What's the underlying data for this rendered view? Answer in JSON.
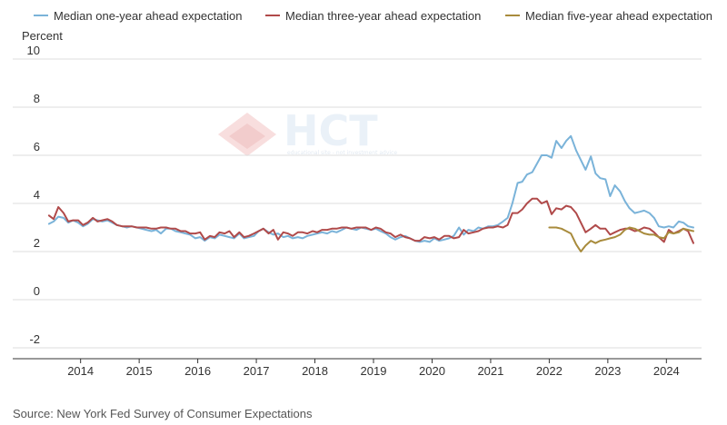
{
  "chart_data": {
    "type": "line",
    "ylabel": "Percent",
    "ylim": [
      -2,
      10
    ],
    "yticks": [
      -2,
      0,
      2,
      4,
      6,
      8,
      10
    ],
    "xlim": [
      2013.4,
      2024.6
    ],
    "xticks": [
      2014,
      2015,
      2016,
      2017,
      2018,
      2019,
      2020,
      2021,
      2022,
      2023,
      2024
    ],
    "grid": "horizontal",
    "legend_position": "top",
    "source": "Source: New York Fed Survey of Consumer Expectations",
    "watermark": {
      "brand": "HCT",
      "tagline": "educational site - not investment advice"
    },
    "series": [
      {
        "name": "Median one-year ahead expectation",
        "color": "#7ab3d9",
        "points": [
          [
            2013.46,
            3.15
          ],
          [
            2013.54,
            3.25
          ],
          [
            2013.62,
            3.45
          ],
          [
            2013.71,
            3.4
          ],
          [
            2013.79,
            3.2
          ],
          [
            2013.87,
            3.3
          ],
          [
            2013.96,
            3.2
          ],
          [
            2014.04,
            3.05
          ],
          [
            2014.12,
            3.15
          ],
          [
            2014.21,
            3.35
          ],
          [
            2014.29,
            3.3
          ],
          [
            2014.37,
            3.25
          ],
          [
            2014.46,
            3.3
          ],
          [
            2014.54,
            3.2
          ],
          [
            2014.62,
            3.1
          ],
          [
            2014.71,
            3.05
          ],
          [
            2014.79,
            3.0
          ],
          [
            2014.87,
            3.05
          ],
          [
            2014.96,
            3.0
          ],
          [
            2015.04,
            2.95
          ],
          [
            2015.12,
            2.9
          ],
          [
            2015.21,
            2.85
          ],
          [
            2015.29,
            2.9
          ],
          [
            2015.37,
            2.75
          ],
          [
            2015.46,
            2.95
          ],
          [
            2015.54,
            2.95
          ],
          [
            2015.62,
            2.85
          ],
          [
            2015.71,
            2.8
          ],
          [
            2015.79,
            2.75
          ],
          [
            2015.87,
            2.7
          ],
          [
            2015.96,
            2.55
          ],
          [
            2016.04,
            2.6
          ],
          [
            2016.12,
            2.45
          ],
          [
            2016.21,
            2.6
          ],
          [
            2016.29,
            2.55
          ],
          [
            2016.37,
            2.7
          ],
          [
            2016.46,
            2.65
          ],
          [
            2016.54,
            2.6
          ],
          [
            2016.62,
            2.55
          ],
          [
            2016.71,
            2.75
          ],
          [
            2016.79,
            2.55
          ],
          [
            2016.87,
            2.6
          ],
          [
            2016.96,
            2.65
          ],
          [
            2017.04,
            2.85
          ],
          [
            2017.12,
            2.95
          ],
          [
            2017.21,
            2.8
          ],
          [
            2017.29,
            2.7
          ],
          [
            2017.37,
            2.75
          ],
          [
            2017.46,
            2.6
          ],
          [
            2017.54,
            2.65
          ],
          [
            2017.62,
            2.55
          ],
          [
            2017.71,
            2.6
          ],
          [
            2017.79,
            2.55
          ],
          [
            2017.87,
            2.65
          ],
          [
            2017.96,
            2.7
          ],
          [
            2018.04,
            2.75
          ],
          [
            2018.12,
            2.8
          ],
          [
            2018.21,
            2.75
          ],
          [
            2018.29,
            2.85
          ],
          [
            2018.37,
            2.8
          ],
          [
            2018.46,
            2.9
          ],
          [
            2018.54,
            3.0
          ],
          [
            2018.62,
            2.95
          ],
          [
            2018.71,
            2.9
          ],
          [
            2018.79,
            3.0
          ],
          [
            2018.87,
            2.95
          ],
          [
            2018.96,
            2.9
          ],
          [
            2019.04,
            2.95
          ],
          [
            2019.12,
            2.85
          ],
          [
            2019.21,
            2.75
          ],
          [
            2019.29,
            2.6
          ],
          [
            2019.37,
            2.5
          ],
          [
            2019.46,
            2.6
          ],
          [
            2019.54,
            2.65
          ],
          [
            2019.62,
            2.55
          ],
          [
            2019.71,
            2.45
          ],
          [
            2019.79,
            2.4
          ],
          [
            2019.87,
            2.45
          ],
          [
            2019.96,
            2.4
          ],
          [
            2020.04,
            2.55
          ],
          [
            2020.12,
            2.45
          ],
          [
            2020.21,
            2.5
          ],
          [
            2020.29,
            2.55
          ],
          [
            2020.37,
            2.65
          ],
          [
            2020.46,
            3.0
          ],
          [
            2020.54,
            2.7
          ],
          [
            2020.62,
            2.9
          ],
          [
            2020.71,
            2.85
          ],
          [
            2020.79,
            3.0
          ],
          [
            2020.87,
            2.95
          ],
          [
            2020.96,
            3.05
          ],
          [
            2021.04,
            3.05
          ],
          [
            2021.12,
            3.1
          ],
          [
            2021.21,
            3.25
          ],
          [
            2021.29,
            3.4
          ],
          [
            2021.37,
            4.0
          ],
          [
            2021.46,
            4.85
          ],
          [
            2021.54,
            4.9
          ],
          [
            2021.62,
            5.2
          ],
          [
            2021.71,
            5.3
          ],
          [
            2021.79,
            5.65
          ],
          [
            2021.87,
            6.0
          ],
          [
            2021.96,
            6.0
          ],
          [
            2022.04,
            5.9
          ],
          [
            2022.12,
            6.6
          ],
          [
            2022.21,
            6.3
          ],
          [
            2022.29,
            6.6
          ],
          [
            2022.37,
            6.8
          ],
          [
            2022.46,
            6.2
          ],
          [
            2022.54,
            5.8
          ],
          [
            2022.62,
            5.4
          ],
          [
            2022.71,
            5.95
          ],
          [
            2022.79,
            5.25
          ],
          [
            2022.87,
            5.05
          ],
          [
            2022.96,
            5.0
          ],
          [
            2023.04,
            4.3
          ],
          [
            2023.12,
            4.75
          ],
          [
            2023.21,
            4.5
          ],
          [
            2023.29,
            4.1
          ],
          [
            2023.37,
            3.8
          ],
          [
            2023.46,
            3.6
          ],
          [
            2023.54,
            3.65
          ],
          [
            2023.62,
            3.7
          ],
          [
            2023.71,
            3.6
          ],
          [
            2023.79,
            3.4
          ],
          [
            2023.87,
            3.05
          ],
          [
            2023.96,
            3.0
          ],
          [
            2024.04,
            3.05
          ],
          [
            2024.12,
            3.0
          ],
          [
            2024.21,
            3.25
          ],
          [
            2024.29,
            3.2
          ],
          [
            2024.37,
            3.05
          ],
          [
            2024.46,
            3.0
          ]
        ]
      },
      {
        "name": "Median three-year ahead expectation",
        "color": "#b04a4a",
        "points": [
          [
            2013.46,
            3.5
          ],
          [
            2013.54,
            3.35
          ],
          [
            2013.62,
            3.85
          ],
          [
            2013.71,
            3.6
          ],
          [
            2013.79,
            3.25
          ],
          [
            2013.87,
            3.3
          ],
          [
            2013.96,
            3.3
          ],
          [
            2014.04,
            3.1
          ],
          [
            2014.12,
            3.2
          ],
          [
            2014.21,
            3.4
          ],
          [
            2014.29,
            3.25
          ],
          [
            2014.37,
            3.3
          ],
          [
            2014.46,
            3.35
          ],
          [
            2014.54,
            3.25
          ],
          [
            2014.62,
            3.1
          ],
          [
            2014.71,
            3.05
          ],
          [
            2014.79,
            3.05
          ],
          [
            2014.87,
            3.05
          ],
          [
            2014.96,
            3.0
          ],
          [
            2015.04,
            3.0
          ],
          [
            2015.12,
            3.0
          ],
          [
            2015.21,
            2.95
          ],
          [
            2015.29,
            2.95
          ],
          [
            2015.37,
            3.0
          ],
          [
            2015.46,
            3.0
          ],
          [
            2015.54,
            2.95
          ],
          [
            2015.62,
            2.95
          ],
          [
            2015.71,
            2.85
          ],
          [
            2015.79,
            2.85
          ],
          [
            2015.87,
            2.75
          ],
          [
            2015.96,
            2.75
          ],
          [
            2016.04,
            2.8
          ],
          [
            2016.12,
            2.5
          ],
          [
            2016.21,
            2.65
          ],
          [
            2016.29,
            2.6
          ],
          [
            2016.37,
            2.8
          ],
          [
            2016.46,
            2.75
          ],
          [
            2016.54,
            2.85
          ],
          [
            2016.62,
            2.6
          ],
          [
            2016.71,
            2.8
          ],
          [
            2016.79,
            2.6
          ],
          [
            2016.87,
            2.65
          ],
          [
            2016.96,
            2.75
          ],
          [
            2017.04,
            2.85
          ],
          [
            2017.12,
            2.95
          ],
          [
            2017.21,
            2.75
          ],
          [
            2017.29,
            2.9
          ],
          [
            2017.37,
            2.5
          ],
          [
            2017.46,
            2.8
          ],
          [
            2017.54,
            2.75
          ],
          [
            2017.62,
            2.65
          ],
          [
            2017.71,
            2.8
          ],
          [
            2017.79,
            2.8
          ],
          [
            2017.87,
            2.75
          ],
          [
            2017.96,
            2.85
          ],
          [
            2018.04,
            2.8
          ],
          [
            2018.12,
            2.9
          ],
          [
            2018.21,
            2.9
          ],
          [
            2018.29,
            2.95
          ],
          [
            2018.37,
            2.95
          ],
          [
            2018.46,
            3.0
          ],
          [
            2018.54,
            3.0
          ],
          [
            2018.62,
            2.95
          ],
          [
            2018.71,
            3.0
          ],
          [
            2018.79,
            3.0
          ],
          [
            2018.87,
            3.0
          ],
          [
            2018.96,
            2.9
          ],
          [
            2019.04,
            3.0
          ],
          [
            2019.12,
            2.95
          ],
          [
            2019.21,
            2.8
          ],
          [
            2019.29,
            2.75
          ],
          [
            2019.37,
            2.6
          ],
          [
            2019.46,
            2.7
          ],
          [
            2019.54,
            2.6
          ],
          [
            2019.62,
            2.55
          ],
          [
            2019.71,
            2.45
          ],
          [
            2019.79,
            2.45
          ],
          [
            2019.87,
            2.6
          ],
          [
            2019.96,
            2.55
          ],
          [
            2020.04,
            2.6
          ],
          [
            2020.12,
            2.5
          ],
          [
            2020.21,
            2.65
          ],
          [
            2020.29,
            2.65
          ],
          [
            2020.37,
            2.55
          ],
          [
            2020.46,
            2.6
          ],
          [
            2020.54,
            2.9
          ],
          [
            2020.62,
            2.75
          ],
          [
            2020.71,
            2.8
          ],
          [
            2020.79,
            2.85
          ],
          [
            2020.87,
            2.95
          ],
          [
            2020.96,
            3.0
          ],
          [
            2021.04,
            3.0
          ],
          [
            2021.12,
            3.05
          ],
          [
            2021.21,
            3.0
          ],
          [
            2021.29,
            3.1
          ],
          [
            2021.37,
            3.6
          ],
          [
            2021.46,
            3.6
          ],
          [
            2021.54,
            3.75
          ],
          [
            2021.62,
            4.0
          ],
          [
            2021.71,
            4.2
          ],
          [
            2021.79,
            4.2
          ],
          [
            2021.87,
            4.0
          ],
          [
            2021.96,
            4.1
          ],
          [
            2022.04,
            3.55
          ],
          [
            2022.12,
            3.8
          ],
          [
            2022.21,
            3.75
          ],
          [
            2022.29,
            3.9
          ],
          [
            2022.37,
            3.85
          ],
          [
            2022.46,
            3.6
          ],
          [
            2022.54,
            3.2
          ],
          [
            2022.62,
            2.8
          ],
          [
            2022.71,
            2.95
          ],
          [
            2022.79,
            3.1
          ],
          [
            2022.87,
            2.95
          ],
          [
            2022.96,
            2.95
          ],
          [
            2023.04,
            2.7
          ],
          [
            2023.12,
            2.8
          ],
          [
            2023.21,
            2.9
          ],
          [
            2023.29,
            2.95
          ],
          [
            2023.37,
            2.95
          ],
          [
            2023.46,
            2.85
          ],
          [
            2023.54,
            2.9
          ],
          [
            2023.62,
            3.0
          ],
          [
            2023.71,
            2.95
          ],
          [
            2023.79,
            2.8
          ],
          [
            2023.87,
            2.6
          ],
          [
            2023.96,
            2.4
          ],
          [
            2024.04,
            2.9
          ],
          [
            2024.12,
            2.75
          ],
          [
            2024.21,
            2.85
          ],
          [
            2024.29,
            2.95
          ],
          [
            2024.37,
            2.85
          ],
          [
            2024.46,
            2.35
          ]
        ]
      },
      {
        "name": "Median five-year ahead expectation",
        "color": "#a88b3c",
        "points": [
          [
            2022.0,
            3.0
          ],
          [
            2022.12,
            3.0
          ],
          [
            2022.21,
            2.95
          ],
          [
            2022.29,
            2.85
          ],
          [
            2022.37,
            2.75
          ],
          [
            2022.46,
            2.3
          ],
          [
            2022.54,
            2.0
          ],
          [
            2022.62,
            2.25
          ],
          [
            2022.71,
            2.45
          ],
          [
            2022.79,
            2.35
          ],
          [
            2022.87,
            2.45
          ],
          [
            2022.96,
            2.5
          ],
          [
            2023.04,
            2.55
          ],
          [
            2023.12,
            2.6
          ],
          [
            2023.21,
            2.7
          ],
          [
            2023.29,
            2.9
          ],
          [
            2023.37,
            3.0
          ],
          [
            2023.46,
            2.95
          ],
          [
            2023.54,
            2.85
          ],
          [
            2023.62,
            2.75
          ],
          [
            2023.71,
            2.7
          ],
          [
            2023.79,
            2.7
          ],
          [
            2023.87,
            2.6
          ],
          [
            2023.96,
            2.55
          ],
          [
            2024.04,
            2.8
          ],
          [
            2024.12,
            2.75
          ],
          [
            2024.21,
            2.8
          ],
          [
            2024.29,
            2.95
          ],
          [
            2024.37,
            2.9
          ],
          [
            2024.46,
            2.85
          ]
        ]
      }
    ]
  }
}
